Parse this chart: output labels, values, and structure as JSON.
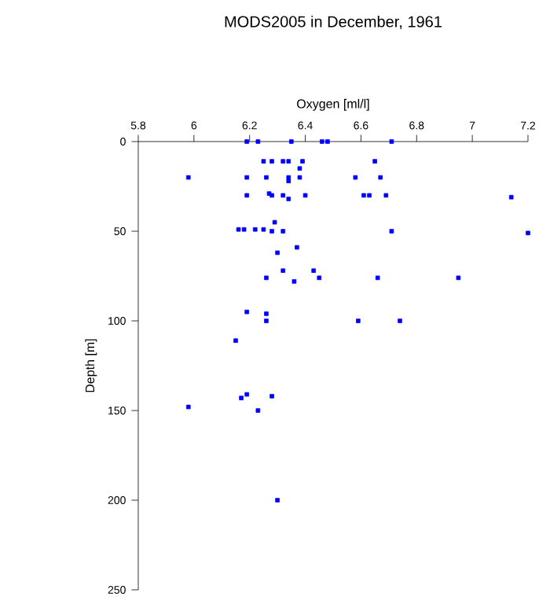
{
  "chart_data": {
    "type": "scatter",
    "title": "MODS2005 in December, 1961",
    "xlabel": "Oxygen [ml/l]",
    "ylabel": "Depth [m]",
    "xlim": [
      5.8,
      7.2
    ],
    "ylim": [
      250,
      0
    ],
    "xticks": [
      5.8,
      6,
      6.2,
      6.4,
      6.6,
      6.8,
      7,
      7.2
    ],
    "yticks": [
      0,
      50,
      100,
      150,
      200,
      250
    ],
    "marker": "square",
    "grid": false,
    "series": [
      {
        "color": "#0000ff",
        "x": [
          6.19,
          6.23,
          6.35,
          6.46,
          6.48,
          6.71,
          6.25,
          6.28,
          6.32,
          6.34,
          6.39,
          6.65,
          6.38,
          5.98,
          6.19,
          6.26,
          6.34,
          6.38,
          6.58,
          6.67,
          6.34,
          6.27,
          6.28,
          6.19,
          6.32,
          6.4,
          6.61,
          6.63,
          6.69,
          6.34,
          7.14,
          6.29,
          6.16,
          6.18,
          6.22,
          6.25,
          6.28,
          6.32,
          6.71,
          7.2,
          6.37,
          6.3,
          6.32,
          6.43,
          6.26,
          6.45,
          6.66,
          6.95,
          6.36,
          6.19,
          6.26,
          6.26,
          6.59,
          6.74,
          6.15,
          6.19,
          6.17,
          6.28,
          5.98,
          6.23,
          6.3
        ],
        "values": [
          0,
          0,
          0,
          0,
          0,
          0,
          11,
          11,
          11,
          11,
          11,
          11,
          15,
          20,
          20,
          20,
          20,
          20,
          20,
          20,
          22,
          29,
          30,
          30,
          30,
          30,
          30,
          30,
          30,
          32,
          31,
          45,
          49,
          49,
          49,
          49,
          50,
          50,
          50,
          51,
          59,
          62,
          72,
          72,
          76,
          76,
          76,
          76,
          78,
          95,
          96,
          100,
          100,
          100,
          111,
          141,
          143,
          142,
          148,
          150,
          200
        ]
      }
    ]
  }
}
